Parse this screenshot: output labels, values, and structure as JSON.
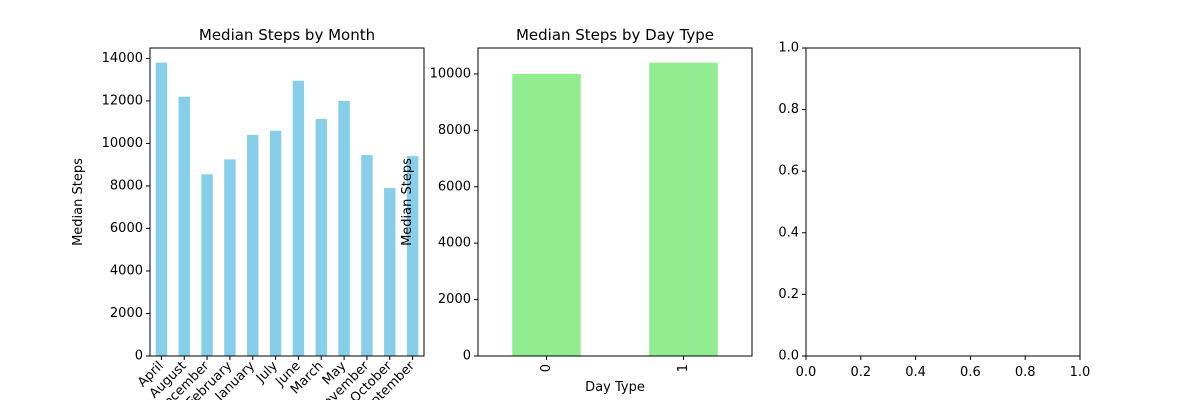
{
  "chart_data": [
    {
      "type": "bar",
      "title": "Median Steps by Month",
      "ylabel": "Median Steps",
      "categories": [
        "April",
        "August",
        "December",
        "February",
        "January",
        "July",
        "June",
        "March",
        "May",
        "November",
        "October",
        "September"
      ],
      "values": [
        13800,
        12200,
        8550,
        9250,
        10400,
        10600,
        12950,
        11150,
        12000,
        9450,
        7900,
        9400
      ],
      "color": "#87ceeb",
      "ylim": [
        0,
        14490
      ],
      "yticks": [
        0,
        2000,
        4000,
        6000,
        8000,
        10000,
        12000,
        14000
      ]
    },
    {
      "type": "bar",
      "title": "Median Steps by Day Type",
      "ylabel": "Median Steps",
      "xlabel": "Day Type",
      "categories": [
        "0",
        "1"
      ],
      "values": [
        10000,
        10400
      ],
      "color": "#90ee90",
      "ylim": [
        0,
        10920
      ],
      "yticks": [
        0,
        2000,
        4000,
        6000,
        8000,
        10000
      ]
    },
    {
      "type": "empty",
      "xlim": [
        0,
        1
      ],
      "ylim": [
        0,
        1
      ],
      "xticks": [
        {
          "value": 0,
          "label": "0.0"
        },
        {
          "value": 0.2,
          "label": "0.2"
        },
        {
          "value": 0.4,
          "label": "0.4"
        },
        {
          "value": 0.6,
          "label": "0.6"
        },
        {
          "value": 0.8,
          "label": "0.8"
        },
        {
          "value": 1,
          "label": "1.0"
        }
      ],
      "yticks": [
        {
          "value": 0,
          "label": "0.0"
        },
        {
          "value": 0.2,
          "label": "0.2"
        },
        {
          "value": 0.4,
          "label": "0.4"
        },
        {
          "value": 0.6,
          "label": "0.6"
        },
        {
          "value": 0.8,
          "label": "0.8"
        },
        {
          "value": 1,
          "label": "1.0"
        }
      ]
    }
  ]
}
